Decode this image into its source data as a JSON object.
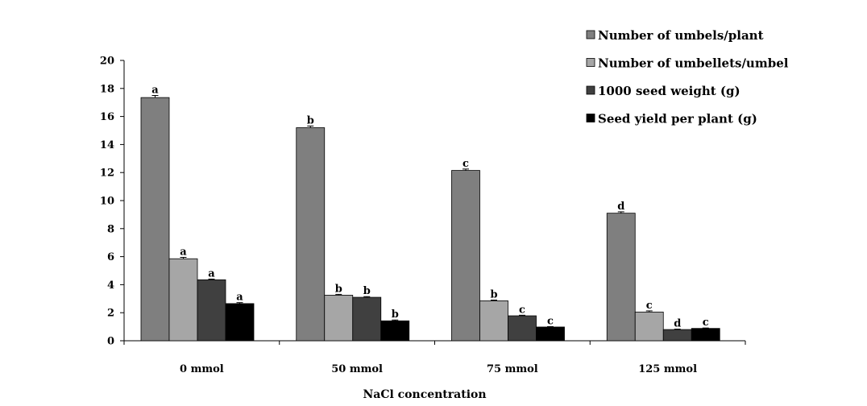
{
  "chart_data": {
    "type": "bar",
    "title": "",
    "xlabel": "NaCl concentration",
    "ylabel": "",
    "ylim": [
      0,
      20
    ],
    "yticks": [
      0,
      2,
      4,
      6,
      8,
      10,
      12,
      14,
      16,
      18,
      20
    ],
    "categories": [
      "0 mmol",
      "50 mmol",
      "75 mmol",
      "125 mmol"
    ],
    "legend_position": "top-right",
    "grid": false,
    "series": [
      {
        "name": "Number of umbels/plant",
        "color": "#7f7f7f",
        "values": [
          17.35,
          15.2,
          12.15,
          9.1
        ],
        "errors": [
          0.15,
          0.12,
          0.1,
          0.1
        ],
        "labels": [
          "a",
          "b",
          "c",
          "d"
        ]
      },
      {
        "name": "Number of umbellets/umbel",
        "color": "#a6a6a6",
        "values": [
          5.85,
          3.25,
          2.85,
          2.05
        ],
        "errors": [
          0.1,
          0.06,
          0.05,
          0.08
        ],
        "labels": [
          "a",
          "b",
          "b",
          "c"
        ]
      },
      {
        "name": "1000 seed weight (g)",
        "color": "#404040",
        "values": [
          4.35,
          3.1,
          1.78,
          0.8
        ],
        "errors": [
          0.05,
          0.05,
          0.04,
          0.03
        ],
        "labels": [
          "a",
          "b",
          "c",
          "d"
        ]
      },
      {
        "name": "Seed yield per plant (g)",
        "color": "#000000",
        "values": [
          2.65,
          1.42,
          0.98,
          0.88
        ],
        "errors": [
          0.07,
          0.06,
          0.03,
          0.03
        ],
        "labels": [
          "a",
          "b",
          "c",
          "c"
        ]
      }
    ]
  }
}
